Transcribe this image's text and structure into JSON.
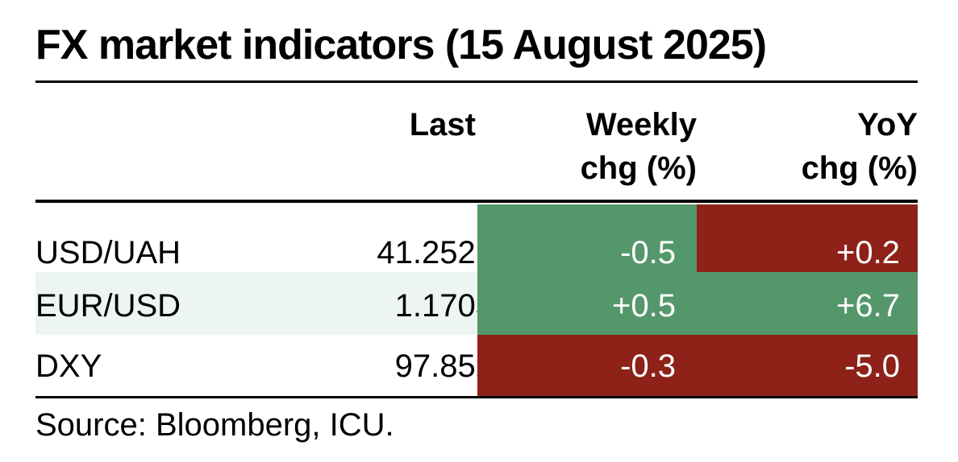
{
  "title": "FX market indicators (15 August 2025)",
  "colors": {
    "positive": "#54976b",
    "negative": "#8e2118",
    "zebra": "#edf5f3"
  },
  "headers": {
    "last": "Last",
    "weekly_line1": "Weekly",
    "weekly_line2": "chg (%)",
    "yoy_line1": "YoY",
    "yoy_line2": "chg (%)"
  },
  "rows": [
    {
      "name": "USD/UAH",
      "last": "41.2521",
      "weekly": "-0.5",
      "yoy": "+0.2",
      "weekly_color": "#54976b",
      "yoy_color": "#8e2118"
    },
    {
      "name": "EUR/USD",
      "last": "1.1703",
      "weekly": "+0.5",
      "yoy": "+6.7",
      "weekly_color": "#54976b",
      "yoy_color": "#54976b"
    },
    {
      "name": "DXY",
      "last": "97.852",
      "weekly": "-0.3",
      "yoy": "-5.0",
      "weekly_color": "#8e2118",
      "yoy_color": "#8e2118"
    }
  ],
  "source": "Source: Bloomberg, ICU.",
  "chart_data": {
    "type": "table",
    "title": "FX market indicators (15 August 2025)",
    "columns": [
      "",
      "Last",
      "Weekly chg (%)",
      "YoY chg (%)"
    ],
    "rows": [
      [
        "USD/UAH",
        41.2521,
        -0.5,
        0.2
      ],
      [
        "EUR/USD",
        1.1703,
        0.5,
        6.7
      ],
      [
        "DXY",
        97.852,
        -0.3,
        -5.0
      ]
    ]
  }
}
